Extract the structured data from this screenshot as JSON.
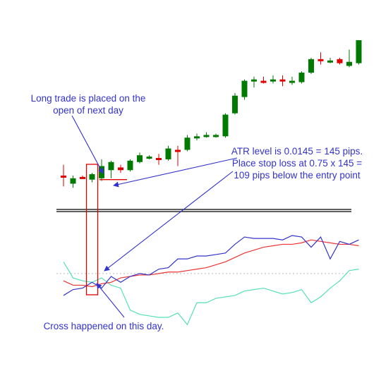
{
  "chart_data": {
    "type": "candlestick",
    "colors": {
      "up_candle": "#007a00",
      "down_candle": "#e00000",
      "price_line": "#2a2a2a",
      "separator": "#000000",
      "adx_line": "#ee3333",
      "plus_di_line": "#3333cc",
      "minus_di_line": "#55e0b8",
      "level_line": "#bbbbbb",
      "highlight_box": "#e00000",
      "annotation_arrow": "#3333cc",
      "annotation_text": "#3333cc"
    },
    "price_panel": {
      "ylim": [
        0,
        100
      ],
      "candles": [
        {
          "o": 12,
          "h": 20,
          "l": 4,
          "c": 12,
          "dir": "down"
        },
        {
          "o": 6,
          "h": 12,
          "l": 3,
          "c": 10,
          "dir": "up"
        },
        {
          "o": 11,
          "h": 12,
          "l": 10,
          "c": 11,
          "dir": "down"
        },
        {
          "o": 9,
          "h": 14,
          "l": 7,
          "c": 13,
          "dir": "up"
        },
        {
          "o": 10,
          "h": 24,
          "l": 8,
          "c": 19,
          "dir": "up"
        },
        {
          "o": 16,
          "h": 23,
          "l": 10,
          "c": 22,
          "dir": "up"
        },
        {
          "o": 18,
          "h": 20,
          "l": 14,
          "c": 16,
          "dir": "down"
        },
        {
          "o": 16,
          "h": 24,
          "l": 15,
          "c": 23,
          "dir": "up"
        },
        {
          "o": 22,
          "h": 29,
          "l": 21,
          "c": 27,
          "dir": "up"
        },
        {
          "o": 25,
          "h": 27,
          "l": 24,
          "c": 26,
          "dir": "up"
        },
        {
          "o": 25,
          "h": 28,
          "l": 20,
          "c": 24,
          "dir": "down"
        },
        {
          "o": 24,
          "h": 34,
          "l": 23,
          "c": 32,
          "dir": "up"
        },
        {
          "o": 31,
          "h": 34,
          "l": 19,
          "c": 31,
          "dir": "down"
        },
        {
          "o": 31,
          "h": 42,
          "l": 30,
          "c": 40,
          "dir": "up"
        },
        {
          "o": 40,
          "h": 43,
          "l": 38,
          "c": 41,
          "dir": "up"
        },
        {
          "o": 41,
          "h": 44,
          "l": 40,
          "c": 42,
          "dir": "up"
        },
        {
          "o": 42,
          "h": 43,
          "l": 40,
          "c": 42,
          "dir": "up"
        },
        {
          "o": 41,
          "h": 58,
          "l": 40,
          "c": 57,
          "dir": "up"
        },
        {
          "o": 58,
          "h": 73,
          "l": 57,
          "c": 71,
          "dir": "up"
        },
        {
          "o": 70,
          "h": 83,
          "l": 68,
          "c": 82,
          "dir": "up"
        },
        {
          "o": 82,
          "h": 85,
          "l": 77,
          "c": 83,
          "dir": "up"
        },
        {
          "o": 82,
          "h": 85,
          "l": 80,
          "c": 81,
          "dir": "down"
        },
        {
          "o": 82,
          "h": 86,
          "l": 80,
          "c": 83,
          "dir": "up"
        },
        {
          "o": 83,
          "h": 86,
          "l": 78,
          "c": 83,
          "dir": "down"
        },
        {
          "o": 81,
          "h": 85,
          "l": 79,
          "c": 82,
          "dir": "up"
        },
        {
          "o": 81,
          "h": 89,
          "l": 80,
          "c": 88,
          "dir": "up"
        },
        {
          "o": 88,
          "h": 99,
          "l": 87,
          "c": 98,
          "dir": "up"
        },
        {
          "o": 98,
          "h": 103,
          "l": 94,
          "c": 97,
          "dir": "down"
        },
        {
          "o": 96,
          "h": 99,
          "l": 95,
          "c": 97,
          "dir": "up"
        },
        {
          "o": 98,
          "h": 99,
          "l": 94,
          "c": 95,
          "dir": "down"
        },
        {
          "o": 93,
          "h": 105,
          "l": 92,
          "c": 96,
          "dir": "up"
        },
        {
          "o": 95,
          "h": 112,
          "l": 94,
          "c": 112,
          "dir": "up"
        }
      ],
      "stop_loss_level": 9
    },
    "indicator_panel": {
      "ylim": [
        0,
        70
      ],
      "level": 30,
      "adx": [
        25,
        22,
        22,
        21,
        23,
        24,
        27,
        28,
        29,
        29,
        30,
        31,
        31,
        32,
        33,
        34,
        36,
        38,
        41,
        44,
        46,
        48,
        49,
        50,
        50,
        51,
        53,
        52,
        51,
        50,
        50,
        49
      ],
      "plus_di": [
        15,
        19,
        20,
        24,
        20,
        28,
        24,
        28,
        30,
        29,
        33,
        34,
        40,
        40,
        42,
        42,
        43,
        44,
        50,
        55,
        54,
        54,
        54,
        53,
        56,
        55,
        48,
        55,
        40,
        52,
        50,
        53
      ],
      "minus_di": [
        38,
        27,
        25,
        24,
        27,
        22,
        20,
        5,
        2,
        1,
        0,
        0,
        3,
        -5,
        10,
        10,
        13,
        14,
        15,
        18,
        19,
        20,
        18,
        16,
        17,
        19,
        10,
        14,
        20,
        25,
        32,
        33
      ]
    },
    "highlight_index": 3,
    "entry_index": 4,
    "annotations": {
      "long_trade": "Long trade is placed on the open of next day",
      "atr_note": "ATR level is 0.0145 = 145 pips. Place stop loss at 0.75 x 145 = 109 pips below the entry point",
      "cross_note": "Cross happened on this day."
    }
  }
}
